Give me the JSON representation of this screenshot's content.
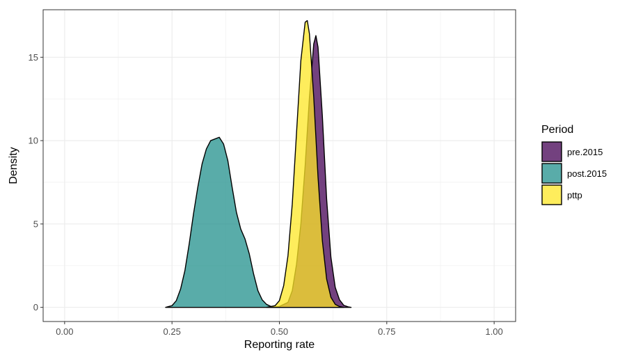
{
  "chart_data": {
    "type": "area",
    "subtype": "density",
    "title": "",
    "xlabel": "Reporting rate",
    "ylabel": "Density",
    "xlim": [
      -0.05,
      1.05
    ],
    "ylim": [
      -0.85,
      17.85
    ],
    "x_ticks": [
      0.0,
      0.25,
      0.5,
      0.75,
      1.0
    ],
    "x_tick_labels": [
      "0.00",
      "0.25",
      "0.50",
      "0.75",
      "1.00"
    ],
    "y_ticks": [
      0,
      5,
      10,
      15
    ],
    "y_tick_labels": [
      "0",
      "5",
      "10",
      "15"
    ],
    "grid": true,
    "legend": {
      "title": "Period",
      "placement": "right"
    },
    "series": [
      {
        "name": "pre.2015",
        "color": "#440154",
        "x": [
          0.48,
          0.5,
          0.52,
          0.53,
          0.54,
          0.55,
          0.56,
          0.57,
          0.58,
          0.585,
          0.59,
          0.6,
          0.61,
          0.62,
          0.63,
          0.64,
          0.65,
          0.66,
          0.667
        ],
        "y": [
          0.0,
          0.05,
          0.3,
          1.0,
          2.6,
          5.0,
          8.5,
          12.6,
          15.8,
          16.3,
          15.6,
          11.5,
          6.5,
          3.0,
          1.2,
          0.45,
          0.12,
          0.03,
          0.0
        ]
      },
      {
        "name": "post.2015",
        "color": "#21908C",
        "x": [
          0.235,
          0.25,
          0.26,
          0.27,
          0.28,
          0.29,
          0.3,
          0.31,
          0.32,
          0.33,
          0.34,
          0.35,
          0.36,
          0.37,
          0.38,
          0.39,
          0.4,
          0.41,
          0.42,
          0.43,
          0.44,
          0.45,
          0.46,
          0.47,
          0.48,
          0.49,
          0.5
        ],
        "y": [
          0.0,
          0.1,
          0.4,
          1.1,
          2.2,
          3.8,
          5.6,
          7.2,
          8.6,
          9.5,
          10.0,
          10.1,
          10.2,
          9.8,
          8.8,
          7.2,
          5.7,
          4.7,
          4.1,
          3.2,
          2.0,
          1.0,
          0.45,
          0.18,
          0.06,
          0.02,
          0.0
        ]
      },
      {
        "name": "pttp",
        "color": "#FDE725",
        "x": [
          0.47,
          0.49,
          0.5,
          0.51,
          0.52,
          0.53,
          0.54,
          0.55,
          0.56,
          0.565,
          0.57,
          0.58,
          0.59,
          0.6,
          0.61,
          0.62,
          0.63,
          0.64,
          0.65
        ],
        "y": [
          0.0,
          0.1,
          0.4,
          1.3,
          3.1,
          6.2,
          10.5,
          14.8,
          17.1,
          17.2,
          16.4,
          12.6,
          7.8,
          4.0,
          1.7,
          0.6,
          0.18,
          0.05,
          0.0
        ]
      }
    ]
  }
}
